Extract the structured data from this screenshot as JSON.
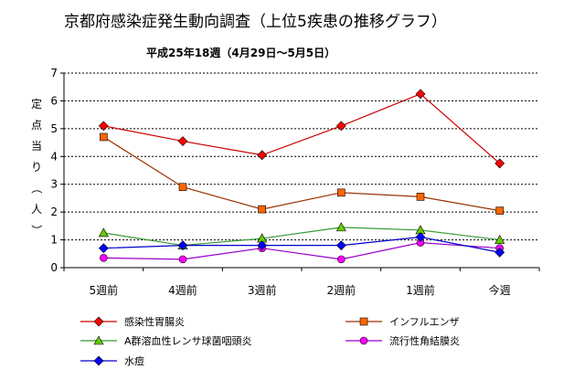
{
  "chart_data": {
    "type": "line",
    "title": "京都府感染症発生動向調査（上位5疾患の推移グラフ）",
    "subtitle": "平成25年18週（4月29日～5月5日）",
    "ylabel": "定点当り（人）",
    "xlabel": "",
    "ylim": [
      0,
      7
    ],
    "yticks": [
      0,
      1,
      2,
      3,
      4,
      5,
      6,
      7
    ],
    "grid": "horizontal-dashed",
    "legend_placement": "bottom",
    "categories": [
      "5週前",
      "4週前",
      "3週前",
      "2週前",
      "1週前",
      "今週"
    ],
    "series": [
      {
        "name": "感染性胃腸炎",
        "color": "#ff0000",
        "line_color": "#cc0000",
        "marker": "diamond",
        "values": [
          5.1,
          4.55,
          4.05,
          5.1,
          6.25,
          3.75
        ]
      },
      {
        "name": "インフルエンザ",
        "color": "#ff6600",
        "line_color": "#993300",
        "marker": "square",
        "values": [
          4.7,
          2.9,
          2.1,
          2.7,
          2.55,
          2.05
        ]
      },
      {
        "name": "A群溶血性レンサ球菌咽頭炎",
        "color": "#66cc00",
        "line_color": "#339933",
        "marker": "triangle",
        "values": [
          1.25,
          0.8,
          1.05,
          1.45,
          1.35,
          1.0
        ]
      },
      {
        "name": "流行性角結膜炎",
        "color": "#ff00ff",
        "line_color": "#9900cc",
        "marker": "circle",
        "values": [
          0.35,
          0.3,
          0.7,
          0.3,
          0.9,
          0.7
        ]
      },
      {
        "name": "水痘",
        "color": "#0000ff",
        "line_color": "#0000cc",
        "marker": "diamond",
        "values": [
          0.7,
          0.8,
          0.8,
          0.8,
          1.1,
          0.55
        ]
      }
    ]
  }
}
